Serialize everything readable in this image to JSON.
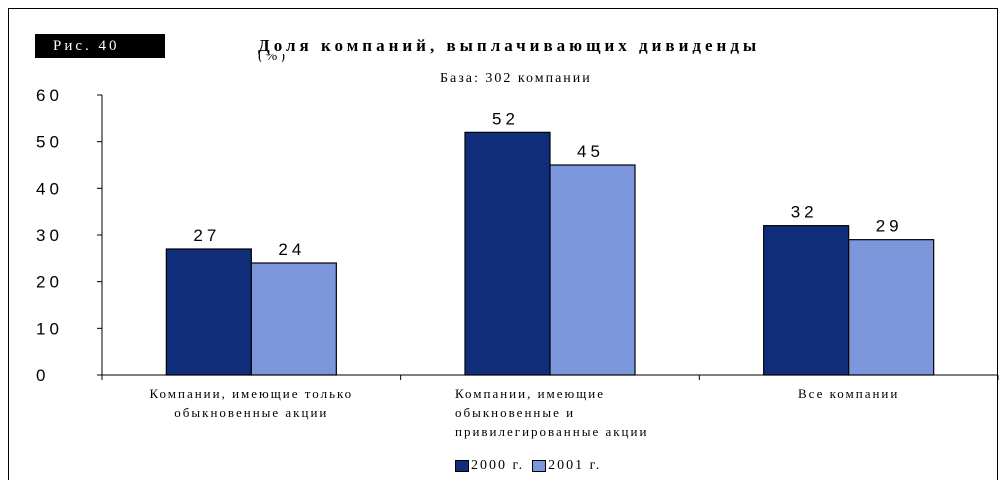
{
  "figure_label": "Рис. 40",
  "title": "Доля компаний, выплачивающих дивиденды",
  "title_cut": "(%)",
  "subtitle": "База: 302 компании",
  "colors": {
    "series_2000": "#0f2d7a",
    "series_2001": "#7b96db"
  },
  "chart_data": {
    "type": "bar",
    "categories": [
      [
        "Компании, имеющие только",
        "обыкновенные акции"
      ],
      [
        "Компании, имеющие",
        "обыкновенные и",
        "привилегированные акции"
      ],
      [
        "Все компании"
      ]
    ],
    "series": [
      {
        "name": "2000 г.",
        "values": [
          27,
          52,
          32
        ]
      },
      {
        "name": "2001 г.",
        "values": [
          24,
          45,
          29
        ]
      }
    ],
    "yticks": [
      "60",
      "50",
      "40",
      "30",
      "20",
      "10",
      "0"
    ],
    "ylim": [
      0,
      60
    ],
    "grid": false,
    "legend_position": "bottom"
  }
}
